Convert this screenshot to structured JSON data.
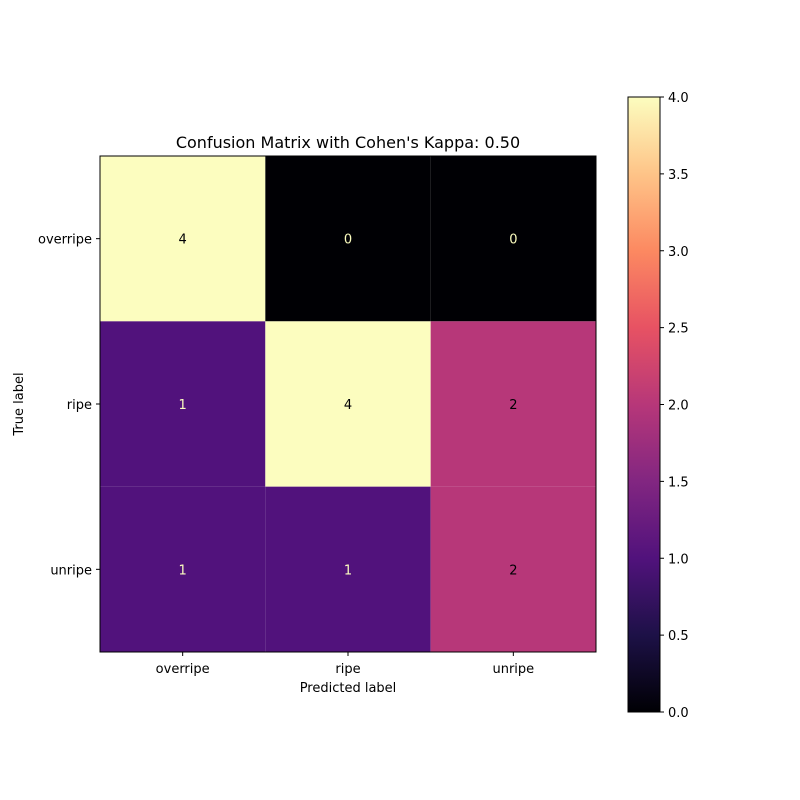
{
  "chart_data": {
    "type": "heatmap",
    "title": "Confusion Matrix with Cohen's Kappa: 0.50",
    "xlabel": "Predicted label",
    "ylabel": "True label",
    "x_categories": [
      "overripe",
      "ripe",
      "unripe"
    ],
    "y_categories": [
      "overripe",
      "ripe",
      "unripe"
    ],
    "values": [
      [
        4,
        0,
        0
      ],
      [
        1,
        4,
        2
      ],
      [
        1,
        1,
        2
      ]
    ],
    "colormap": "magma",
    "colorbar": {
      "range": [
        0,
        4
      ],
      "ticks": [
        "0.0",
        "0.5",
        "1.0",
        "1.5",
        "2.0",
        "2.5",
        "3.0",
        "3.5",
        "4.0"
      ]
    },
    "cell_colors": {
      "0": "#000004",
      "1": "#51127c",
      "2": "#b73779",
      "4": "#fcfdbf"
    },
    "text_colors": {
      "on_dark": "#fcfdbf",
      "on_light": "#000004"
    }
  }
}
